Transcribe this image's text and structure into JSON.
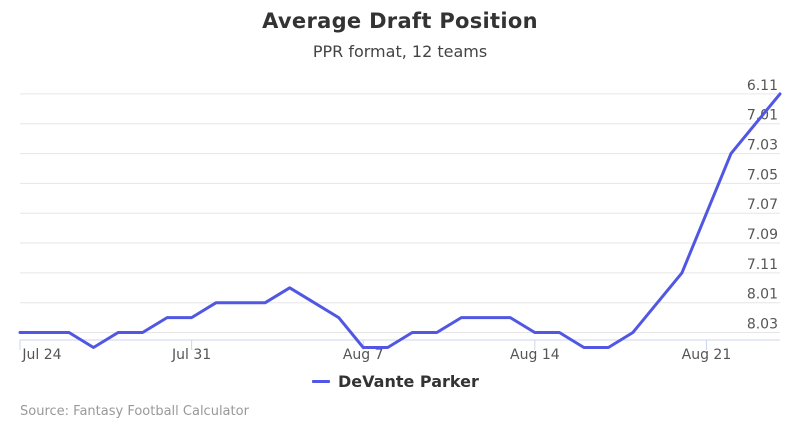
{
  "chart_data": {
    "type": "line",
    "title": "Average Draft Position",
    "subtitle": "PPR format, 12 teams",
    "xlabel": "",
    "ylabel": "",
    "x_tick_labels": [
      "Jul 24",
      "Jul 31",
      "Aug 7",
      "Aug 14",
      "Aug 21"
    ],
    "y_tick_labels": [
      "6.11",
      "7.01",
      "7.03",
      "7.05",
      "7.07",
      "7.09",
      "7.11",
      "8.01",
      "8.03"
    ],
    "y_reversed": true,
    "grid": true,
    "legend_position": "bottom-center",
    "series": [
      {
        "name": "DeVante Parker",
        "color": "#5157e3",
        "points": [
          {
            "x": "Jul 24",
            "y": "8.03"
          },
          {
            "x": "Jul 25",
            "y": "8.03"
          },
          {
            "x": "Jul 26",
            "y": "8.03"
          },
          {
            "x": "Jul 27",
            "y": "8.04"
          },
          {
            "x": "Jul 28",
            "y": "8.03"
          },
          {
            "x": "Jul 29",
            "y": "8.03"
          },
          {
            "x": "Jul 30",
            "y": "8.02"
          },
          {
            "x": "Jul 31",
            "y": "8.02"
          },
          {
            "x": "Aug 1",
            "y": "8.01"
          },
          {
            "x": "Aug 2",
            "y": "8.01"
          },
          {
            "x": "Aug 3",
            "y": "8.01"
          },
          {
            "x": "Aug 4",
            "y": "8.00"
          },
          {
            "x": "Aug 5",
            "y": "8.01"
          },
          {
            "x": "Aug 6",
            "y": "8.02"
          },
          {
            "x": "Aug 7",
            "y": "8.04"
          },
          {
            "x": "Aug 8",
            "y": "8.04"
          },
          {
            "x": "Aug 9",
            "y": "8.03"
          },
          {
            "x": "Aug 10",
            "y": "8.03"
          },
          {
            "x": "Aug 11",
            "y": "8.02"
          },
          {
            "x": "Aug 12",
            "y": "8.02"
          },
          {
            "x": "Aug 13",
            "y": "8.02"
          },
          {
            "x": "Aug 14",
            "y": "8.03"
          },
          {
            "x": "Aug 15",
            "y": "8.03"
          },
          {
            "x": "Aug 16",
            "y": "8.04"
          },
          {
            "x": "Aug 17",
            "y": "8.04"
          },
          {
            "x": "Aug 18",
            "y": "8.03"
          },
          {
            "x": "Aug 19",
            "y": "8.01"
          },
          {
            "x": "Aug 20",
            "y": "7.11"
          },
          {
            "x": "Aug 21",
            "y": "7.07"
          },
          {
            "x": "Aug 22",
            "y": "7.03"
          },
          {
            "x": "Aug 23",
            "y": "7.01"
          },
          {
            "x": "Aug 24",
            "y": "6.11"
          }
        ]
      }
    ]
  },
  "source": "Source: Fantasy Football Calculator"
}
